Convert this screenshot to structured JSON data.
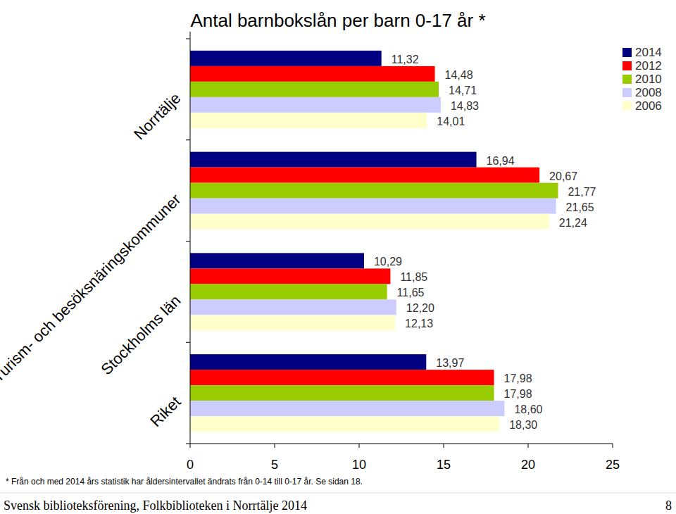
{
  "chart_data": {
    "type": "bar",
    "orientation": "horizontal",
    "title": "Antal barnbokslån per barn 0-17 år *",
    "categories": [
      "Norrtälje",
      "Turism- och besöksnäringskommuner",
      "Stockholms län",
      "Riket"
    ],
    "series": [
      {
        "name": "2014",
        "color": "#000080",
        "values": [
          11.32,
          16.94,
          10.29,
          13.97
        ],
        "value_labels": [
          "11,32",
          "16,94",
          "10,29",
          "13,97"
        ]
      },
      {
        "name": "2012",
        "color": "#ff0000",
        "values": [
          14.48,
          20.67,
          11.85,
          17.98
        ],
        "value_labels": [
          "14,48",
          "20,67",
          "11,85",
          "17,98"
        ]
      },
      {
        "name": "2010",
        "color": "#99cc00",
        "values": [
          14.71,
          21.77,
          11.65,
          17.98
        ],
        "value_labels": [
          "14,71",
          "21,77",
          "11,65",
          "17,98"
        ]
      },
      {
        "name": "2008",
        "color": "#ccccff",
        "values": [
          14.83,
          21.65,
          12.2,
          18.6
        ],
        "value_labels": [
          "14,83",
          "21,65",
          "12,20",
          "18,60"
        ]
      },
      {
        "name": "2006",
        "color": "#ffffcc",
        "values": [
          14.01,
          21.24,
          12.13,
          18.3
        ],
        "value_labels": [
          "14,01",
          "21,24",
          "12,13",
          "18,30"
        ]
      }
    ],
    "xlim": [
      0,
      25
    ],
    "xticks": [
      0,
      5,
      10,
      15,
      20,
      25
    ],
    "grid": false,
    "legend": "upper right",
    "data_labels": true,
    "footnote": "* Från och med 2014 års statistik har åldersintervallet ändrats från 0-14 till 0-17 år. Se sidan 18."
  },
  "footer": {
    "text": "Svensk biblioteksförening, Folkbiblioteken i Norrtälje 2014",
    "page_number": "8"
  }
}
